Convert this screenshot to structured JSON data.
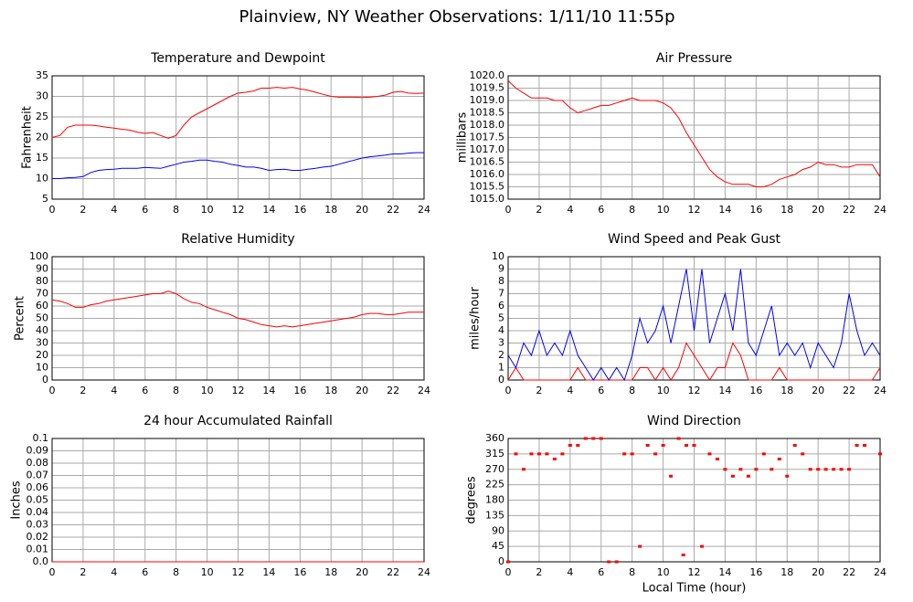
{
  "title": "Plainview, NY Weather Observations: 1/11/10 11:55p",
  "chart_data": [
    {
      "type": "line",
      "title": "Temperature and Dewpoint",
      "y_label": "Fahrenheit",
      "x": [
        0,
        0.5,
        1,
        1.5,
        2,
        2.5,
        3,
        3.5,
        4,
        4.5,
        5,
        5.5,
        6,
        6.5,
        7,
        7.5,
        8,
        8.5,
        9,
        9.5,
        10,
        10.5,
        11,
        11.5,
        12,
        12.5,
        13,
        13.5,
        14,
        14.5,
        15,
        15.5,
        16,
        16.5,
        17,
        17.5,
        18,
        18.5,
        19,
        19.5,
        20,
        20.5,
        21,
        21.5,
        22,
        22.5,
        23,
        23.5,
        24
      ],
      "series": [
        {
          "color": "#ff0000",
          "values": [
            20,
            20.5,
            22.5,
            23,
            23,
            23,
            22.8,
            22.5,
            22.3,
            22,
            21.8,
            21.3,
            21,
            21.2,
            20.5,
            19.8,
            20.5,
            23,
            25,
            26,
            27,
            28,
            29,
            30,
            30.8,
            31,
            31.3,
            32,
            32,
            32.2,
            32,
            32.2,
            31.8,
            31.5,
            31,
            30.5,
            30,
            29.8,
            29.8,
            29.8,
            29.7,
            29.8,
            30,
            30.3,
            31,
            31.2,
            30.8,
            30.7,
            30.8
          ]
        },
        {
          "color": "#0000ff",
          "values": [
            10,
            10,
            10.2,
            10.3,
            10.5,
            11.5,
            12,
            12.2,
            12.3,
            12.5,
            12.5,
            12.5,
            12.7,
            12.6,
            12.5,
            13,
            13.5,
            14,
            14.2,
            14.5,
            14.5,
            14.2,
            14,
            13.5,
            13.2,
            12.8,
            12.8,
            12.5,
            12,
            12.2,
            12.3,
            12,
            12,
            12.3,
            12.5,
            12.8,
            13,
            13.5,
            14,
            14.5,
            15,
            15.3,
            15.5,
            15.7,
            16,
            16,
            16.2,
            16.3,
            16.3
          ]
        }
      ],
      "xlim": [
        0,
        24
      ],
      "xticks": [
        0,
        2,
        4,
        6,
        8,
        10,
        12,
        14,
        16,
        18,
        20,
        22,
        24
      ],
      "ylim": [
        5,
        35
      ],
      "yticks": [
        5,
        10,
        15,
        20,
        25,
        30,
        35
      ],
      "grid": true
    },
    {
      "type": "line",
      "title": "Air Pressure",
      "y_label": "millibars",
      "x": [
        0,
        0.5,
        1,
        1.5,
        2,
        2.5,
        3,
        3.5,
        4,
        4.5,
        5,
        5.5,
        6,
        6.5,
        7,
        7.5,
        8,
        8.5,
        9,
        9.5,
        10,
        10.5,
        11,
        11.5,
        12,
        12.5,
        13,
        13.5,
        14,
        14.5,
        15,
        15.5,
        16,
        16.5,
        17,
        17.5,
        18,
        18.5,
        19,
        19.5,
        20,
        20.5,
        21,
        21.5,
        22,
        22.5,
        23,
        23.5,
        24
      ],
      "series": [
        {
          "color": "#ff0000",
          "values": [
            1019.8,
            1019.5,
            1019.3,
            1019.1,
            1019.1,
            1019.1,
            1019.0,
            1019.0,
            1018.7,
            1018.5,
            1018.6,
            1018.7,
            1018.8,
            1018.8,
            1018.9,
            1019.0,
            1019.1,
            1019.0,
            1019.0,
            1019.0,
            1018.9,
            1018.7,
            1018.3,
            1017.7,
            1017.2,
            1016.7,
            1016.2,
            1015.9,
            1015.7,
            1015.6,
            1015.6,
            1015.6,
            1015.5,
            1015.5,
            1015.6,
            1015.8,
            1015.9,
            1016.0,
            1016.2,
            1016.3,
            1016.5,
            1016.4,
            1016.4,
            1016.3,
            1016.3,
            1016.4,
            1016.4,
            1016.4,
            1015.9
          ]
        }
      ],
      "xlim": [
        0,
        24
      ],
      "xticks": [
        0,
        2,
        4,
        6,
        8,
        10,
        12,
        14,
        16,
        18,
        20,
        22,
        24
      ],
      "ylim": [
        1015,
        1020
      ],
      "yticks": [
        {
          "value": 1015,
          "label": "1015.0"
        },
        1015.5,
        {
          "value": 1016,
          "label": "1016.0"
        },
        1016.5,
        {
          "value": 1017,
          "label": "1017.0"
        },
        1017.5,
        {
          "value": 1018,
          "label": "1018.0"
        },
        1018.5,
        {
          "value": 1019,
          "label": "1019.0"
        },
        1019.5,
        {
          "value": 1020,
          "label": "1020.0"
        }
      ],
      "grid": true
    },
    {
      "type": "line",
      "title": "Relative Humidity",
      "y_label": "Percent",
      "x": [
        0,
        0.5,
        1,
        1.5,
        2,
        2.5,
        3,
        3.5,
        4,
        4.5,
        5,
        5.5,
        6,
        6.5,
        7,
        7.5,
        8,
        8.5,
        9,
        9.5,
        10,
        10.5,
        11,
        11.5,
        12,
        12.5,
        13,
        13.5,
        14,
        14.5,
        15,
        15.5,
        16,
        16.5,
        17,
        17.5,
        18,
        18.5,
        19,
        19.5,
        20,
        20.5,
        21,
        21.5,
        22,
        22.5,
        23,
        23.5,
        24
      ],
      "series": [
        {
          "color": "#ff0000",
          "values": [
            65,
            64,
            62,
            59,
            59,
            61,
            62,
            64,
            65,
            66,
            67,
            68,
            69,
            70,
            70,
            72,
            70,
            66,
            63,
            62,
            59,
            57,
            55,
            53,
            50,
            49,
            47,
            45,
            44,
            43,
            44,
            43,
            44,
            45,
            46,
            47,
            48,
            49,
            50,
            51,
            53,
            54,
            54,
            53,
            53,
            54,
            55,
            55,
            55
          ]
        }
      ],
      "xlim": [
        0,
        24
      ],
      "xticks": [
        0,
        2,
        4,
        6,
        8,
        10,
        12,
        14,
        16,
        18,
        20,
        22,
        24
      ],
      "ylim": [
        0,
        100
      ],
      "yticks": [
        0,
        10,
        20,
        30,
        40,
        50,
        60,
        70,
        80,
        90,
        100
      ],
      "grid": true
    },
    {
      "type": "line",
      "title": "Wind Speed and Peak Gust",
      "y_label": "miles/hour",
      "x": [
        0,
        0.5,
        1,
        1.5,
        2,
        2.5,
        3,
        3.5,
        4,
        4.5,
        5,
        5.5,
        6,
        6.5,
        7,
        7.5,
        8,
        8.5,
        9,
        9.5,
        10,
        10.5,
        11,
        11.5,
        12,
        12.5,
        13,
        13.5,
        14,
        14.5,
        15,
        15.5,
        16,
        16.5,
        17,
        17.5,
        18,
        18.5,
        19,
        19.5,
        20,
        20.5,
        21,
        21.5,
        22,
        22.5,
        23,
        23.5,
        24
      ],
      "series": [
        {
          "color": "#ff0000",
          "values": [
            0,
            1,
            0,
            0,
            0,
            0,
            0,
            0,
            0,
            1,
            0,
            0,
            0,
            0,
            0,
            0,
            0,
            1,
            1,
            0,
            1,
            0,
            1,
            3,
            2,
            1,
            0,
            1,
            1,
            3,
            2,
            0,
            0,
            0,
            0,
            1,
            0,
            0,
            0,
            0,
            0,
            0,
            0,
            0,
            0,
            0,
            0,
            0,
            1
          ]
        },
        {
          "color": "#0000ff",
          "values": [
            2,
            1,
            3,
            2,
            4,
            2,
            3,
            2,
            4,
            2,
            1,
            0,
            1,
            0,
            1,
            0,
            2,
            5,
            3,
            4,
            6,
            3,
            6,
            9,
            4,
            9,
            3,
            5,
            7,
            4,
            9,
            3,
            2,
            4,
            6,
            2,
            3,
            2,
            3,
            1,
            3,
            2,
            1,
            3,
            7,
            4,
            2,
            3,
            2
          ]
        }
      ],
      "xlim": [
        0,
        24
      ],
      "xticks": [
        0,
        2,
        4,
        6,
        8,
        10,
        12,
        14,
        16,
        18,
        20,
        22,
        24
      ],
      "ylim": [
        0,
        10
      ],
      "yticks": [
        0,
        1,
        2,
        3,
        4,
        5,
        6,
        7,
        8,
        9,
        10
      ],
      "grid": true
    },
    {
      "type": "line",
      "title": "24 hour Accumulated Rainfall",
      "y_label": "Inches",
      "x": [
        0,
        24
      ],
      "series": [
        {
          "color": "#ff0000",
          "values": [
            0,
            0
          ]
        }
      ],
      "xlim": [
        0,
        24
      ],
      "xticks": [
        0,
        2,
        4,
        6,
        8,
        10,
        12,
        14,
        16,
        18,
        20,
        22,
        24
      ],
      "ylim": [
        0,
        0.1
      ],
      "yticks": [
        {
          "value": 0,
          "label": "0.0"
        },
        0.01,
        0.02,
        0.03,
        0.04,
        0.05,
        0.06,
        0.07,
        0.08,
        0.09,
        0.1
      ],
      "grid": true
    },
    {
      "type": "scatter",
      "title": "Wind Direction",
      "y_label": "degrees",
      "x_label": "Local Time (hour)",
      "x": [
        0,
        0.5,
        1,
        1.5,
        2,
        2.5,
        3,
        3.5,
        4,
        4.5,
        5,
        5.5,
        6,
        6.5,
        7,
        7.5,
        8,
        8.5,
        9,
        9.5,
        10,
        10.5,
        11,
        11.3,
        11.5,
        12,
        12.5,
        13,
        13.5,
        14,
        14.5,
        15,
        15.5,
        16,
        16.5,
        17,
        17.5,
        18,
        18.5,
        19,
        19.5,
        20,
        20.5,
        21,
        21.5,
        22,
        22.5,
        23,
        24
      ],
      "series": [
        {
          "color": "#ff0000",
          "values": [
            0,
            315,
            270,
            315,
            315,
            315,
            300,
            315,
            340,
            340,
            360,
            360,
            360,
            0,
            0,
            315,
            315,
            45,
            340,
            315,
            340,
            250,
            360,
            20,
            340,
            340,
            45,
            315,
            300,
            270,
            250,
            270,
            250,
            270,
            315,
            270,
            300,
            250,
            340,
            315,
            270,
            270,
            270,
            270,
            270,
            270,
            340,
            340,
            315
          ]
        }
      ],
      "xlim": [
        0,
        24
      ],
      "xticks": [
        0,
        2,
        4,
        6,
        8,
        10,
        12,
        14,
        16,
        18,
        20,
        22,
        24
      ],
      "ylim": [
        0,
        360
      ],
      "yticks": [
        0,
        45,
        90,
        135,
        180,
        225,
        270,
        315,
        360
      ],
      "grid": true
    }
  ]
}
